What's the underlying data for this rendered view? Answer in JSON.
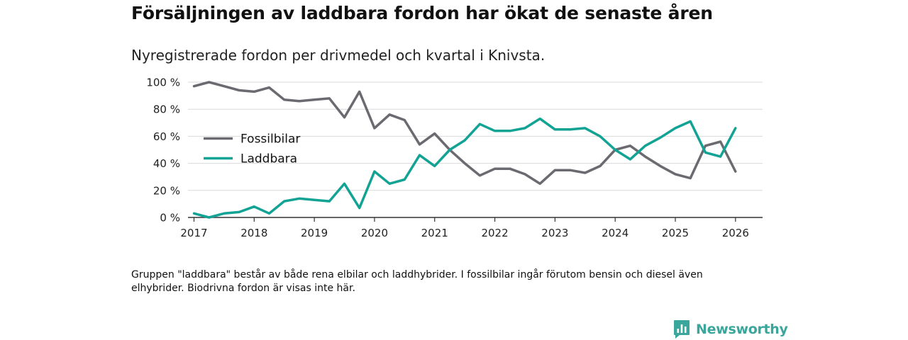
{
  "title": "Försäljningen av laddbara fordon har ökat de senaste åren",
  "subtitle": "Nyregistrerade fordon per drivmedel och kvartal i Knivsta.",
  "footnote": "Gruppen \"laddbara\" består av både rena elbilar och laddhybrider. I fossilbilar ingår förutom bensin och diesel även elhybrider. Biodrivna fordon är visas inte här.",
  "brand": {
    "name": "Newsworthy",
    "icon": "newsworthy-logo-icon",
    "color": "#3aa69c"
  },
  "colors": {
    "fossil": "#6b6a70",
    "laddbara": "#13a395",
    "grid": "#d9d9d9",
    "axis": "#333333"
  },
  "chart_data": {
    "type": "line",
    "title": "Försäljningen av laddbara fordon har ökat de senaste åren",
    "subtitle": "Nyregistrerade fordon per drivmedel och kvartal i Knivsta.",
    "xlabel": "",
    "ylabel": "",
    "ylim": [
      0,
      100
    ],
    "xlim": [
      2016.9,
      2026.45
    ],
    "y_ticks": [
      0,
      20,
      40,
      60,
      80,
      100
    ],
    "y_tick_labels": [
      "0 %",
      "20 %",
      "40 %",
      "60 %",
      "80 %",
      "100 %"
    ],
    "x_ticks": [
      2017,
      2018,
      2019,
      2020,
      2021,
      2022,
      2023,
      2024,
      2025,
      2026
    ],
    "x_tick_labels": [
      "2017",
      "2018",
      "2019",
      "2020",
      "2021",
      "2022",
      "2023",
      "2024",
      "2025",
      "2026"
    ],
    "grid": true,
    "legend_position": "left-center",
    "x": [
      2017.0,
      2017.25,
      2017.5,
      2017.75,
      2018.0,
      2018.25,
      2018.5,
      2018.75,
      2019.0,
      2019.25,
      2019.5,
      2019.75,
      2020.0,
      2020.25,
      2020.5,
      2020.75,
      2021.0,
      2021.25,
      2021.5,
      2021.75,
      2022.0,
      2022.25,
      2022.5,
      2022.75,
      2023.0,
      2023.25,
      2023.5,
      2023.75,
      2024.0,
      2024.25,
      2024.5,
      2024.75,
      2025.0,
      2025.25,
      2025.5,
      2025.75,
      2026.0
    ],
    "series": [
      {
        "name": "Fossilbilar",
        "values": [
          97,
          100,
          97,
          94,
          93,
          96,
          87,
          86,
          87,
          88,
          74,
          93,
          66,
          76,
          72,
          54,
          62,
          50,
          40,
          31,
          36,
          36,
          32,
          25,
          35,
          35,
          33,
          38,
          50,
          53,
          45,
          38,
          32,
          29,
          53,
          56,
          34
        ]
      },
      {
        "name": "Laddbara",
        "values": [
          3,
          0,
          3,
          4,
          8,
          3,
          12,
          14,
          13,
          12,
          25,
          7,
          34,
          25,
          28,
          46,
          38,
          50,
          57,
          69,
          64,
          64,
          66,
          73,
          65,
          65,
          66,
          60,
          50,
          43,
          53,
          59,
          66,
          71,
          48,
          45,
          66
        ]
      }
    ]
  }
}
